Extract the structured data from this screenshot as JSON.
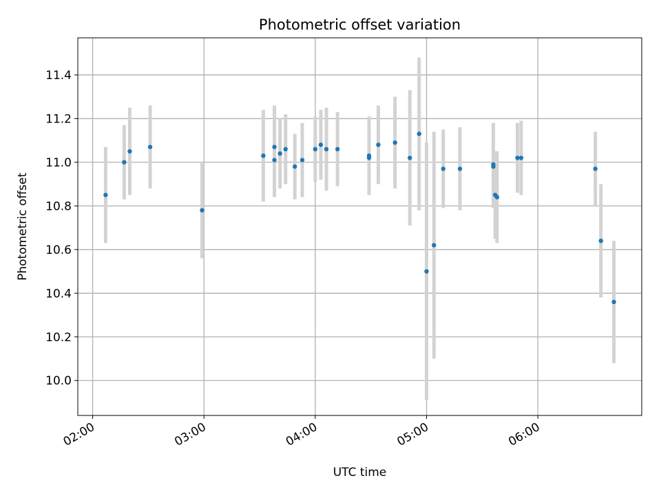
{
  "colors": {
    "point": "#1f77b4",
    "error_bar": "#d3d3d3",
    "grid": "#b0b0b0",
    "axes": "#000000",
    "background": "#ffffff"
  },
  "chart_data": {
    "type": "scatter",
    "title": "Photometric offset variation",
    "xlabel": "UTC time",
    "ylabel": "Photometric offset",
    "x_unit": "HH:MM UTC",
    "xlim": [
      "01:52",
      "06:56"
    ],
    "ylim": [
      9.84,
      11.57
    ],
    "x_ticks": [
      "02:00",
      "03:00",
      "04:00",
      "05:00",
      "06:00"
    ],
    "y_ticks": [
      10.0,
      10.2,
      10.4,
      10.6,
      10.8,
      11.0,
      11.2,
      11.4
    ],
    "y_tick_labels": [
      "10.0",
      "10.2",
      "10.4",
      "10.6",
      "10.8",
      "11.0",
      "11.2",
      "11.4"
    ],
    "grid": true,
    "error_bars": true,
    "series": [
      {
        "points": [
          {
            "x": "02:07",
            "y": 10.85,
            "err": 0.22
          },
          {
            "x": "02:17",
            "y": 11.0,
            "err": 0.17
          },
          {
            "x": "02:20",
            "y": 11.05,
            "err": 0.2
          },
          {
            "x": "02:31",
            "y": 11.07,
            "err": 0.19
          },
          {
            "x": "02:59",
            "y": 10.78,
            "err": 0.22
          },
          {
            "x": "03:32",
            "y": 11.03,
            "err": 0.21
          },
          {
            "x": "03:38",
            "y": 11.01,
            "err": 0.17
          },
          {
            "x": "03:38",
            "y": 11.07,
            "err": 0.19
          },
          {
            "x": "03:41",
            "y": 11.04,
            "err": 0.16
          },
          {
            "x": "03:44",
            "y": 11.06,
            "err": 0.16
          },
          {
            "x": "03:49",
            "y": 10.98,
            "err": 0.15
          },
          {
            "x": "03:53",
            "y": 11.01,
            "err": 0.17
          },
          {
            "x": "04:00",
            "y": 11.06,
            "err": 0.15
          },
          {
            "x": "04:03",
            "y": 11.08,
            "err": 0.16
          },
          {
            "x": "04:06",
            "y": 11.06,
            "err": 0.19
          },
          {
            "x": "04:12",
            "y": 11.06,
            "err": 0.17
          },
          {
            "x": "04:29",
            "y": 11.02,
            "err": 0.17
          },
          {
            "x": "04:29",
            "y": 11.03,
            "err": 0.18
          },
          {
            "x": "04:34",
            "y": 11.08,
            "err": 0.18
          },
          {
            "x": "04:43",
            "y": 11.09,
            "err": 0.21
          },
          {
            "x": "04:51",
            "y": 11.02,
            "err": 0.31
          },
          {
            "x": "04:56",
            "y": 11.13,
            "err": 0.35
          },
          {
            "x": "05:00",
            "y": 10.5,
            "err": 0.59
          },
          {
            "x": "05:04",
            "y": 10.62,
            "err": 0.52
          },
          {
            "x": "05:09",
            "y": 10.97,
            "err": 0.18
          },
          {
            "x": "05:18",
            "y": 10.97,
            "err": 0.19
          },
          {
            "x": "05:36",
            "y": 10.99,
            "err": 0.19
          },
          {
            "x": "05:36",
            "y": 10.98,
            "err": 0.19
          },
          {
            "x": "05:37",
            "y": 10.85,
            "err": 0.2
          },
          {
            "x": "05:38",
            "y": 10.84,
            "err": 0.21
          },
          {
            "x": "05:49",
            "y": 11.02,
            "err": 0.16
          },
          {
            "x": "05:51",
            "y": 11.02,
            "err": 0.17
          },
          {
            "x": "06:31",
            "y": 10.97,
            "err": 0.17
          },
          {
            "x": "06:34",
            "y": 10.64,
            "err": 0.26
          },
          {
            "x": "06:41",
            "y": 10.36,
            "err": 0.28
          }
        ]
      }
    ]
  }
}
